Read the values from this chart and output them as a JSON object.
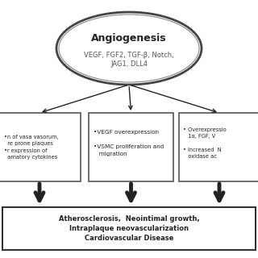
{
  "title": "Angiogenesis",
  "ellipse_subtitle": "VEGF, FGF2, TGF-β, Notch,\nJAG1, DLL4",
  "box_left_text": "•n of vasa vasorum,\n  re prone plaques\n•r expression of\n  amatory cytokines",
  "box_center_text": "•VEGF overexpression\n\n•VSMC proliferation and\n   migration",
  "box_right_text": "• Overexpressio\n   1α, FGF, V\n\n• Increased  N\n   oxidase ac",
  "bottom_box_text": "Atherosclerosis,  Neointimal growth,\nIntraplaque neovascularization\nCardiovascular Disease",
  "bg_color": "#ffffff",
  "box_color": "#ffffff",
  "line_color": "#555555",
  "text_color": "#222222",
  "arrow_color": "#222222"
}
